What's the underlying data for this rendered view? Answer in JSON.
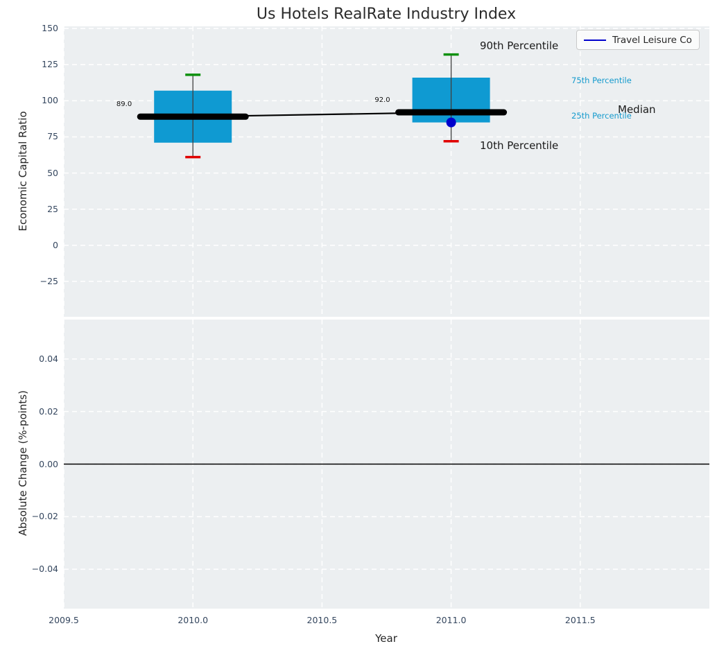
{
  "title": "Us Hotels RealRate Industry Index",
  "colors": {
    "plot_background": "#eceff1",
    "grid": "#ffffff",
    "box_fill": "#0f9ad2",
    "whisker": "#3f3f3f",
    "p90_cap": "#0d900d",
    "p10_cap": "#e00000",
    "median_line": "#000000",
    "company": "#0000cc",
    "tick_label": "#34465e",
    "annotation_cyan": "#149acd",
    "text": "#262626"
  },
  "legend": {
    "label": "Travel Leisure Co"
  },
  "annotations": {
    "p90": "90th Percentile",
    "p75": "75th Percentile",
    "median": "Median",
    "p25": "25th Percentile",
    "p10": "10th Percentile"
  },
  "chart_data": [
    {
      "type": "boxplot",
      "title": "Us Hotels RealRate Industry Index",
      "ylabel": "Economic Capital Ratio",
      "xlim": [
        2009.5,
        2012.0
      ],
      "ylim": [
        -49.5,
        151.5
      ],
      "grid": "white dashed, on",
      "legend_position": "upper right",
      "xtick_labels_shown": false,
      "yticks": [
        {
          "value": 150,
          "label": "150"
        },
        {
          "value": 125,
          "label": "125"
        },
        {
          "value": 100,
          "label": "100"
        },
        {
          "value": 75,
          "label": "75"
        },
        {
          "value": 50,
          "label": "50"
        },
        {
          "value": 25,
          "label": "25"
        },
        {
          "value": 0,
          "label": "0"
        },
        {
          "value": -25,
          "label": "−25"
        }
      ],
      "boxes": [
        {
          "x": 2010,
          "p10": 61,
          "p25": 71,
          "median": 89,
          "p75": 107,
          "p90": 118,
          "median_label": "89.0"
        },
        {
          "x": 2011,
          "p10": 72,
          "p25": 85,
          "median": 92,
          "p75": 116,
          "p90": 132,
          "median_label": "92.0"
        }
      ],
      "median_trend": {
        "x": [
          2010,
          2011
        ],
        "y": [
          89,
          92
        ]
      },
      "series": [
        {
          "name": "Travel Leisure Co",
          "type": "scatter",
          "x": [
            2011
          ],
          "y": [
            85
          ]
        }
      ]
    },
    {
      "type": "line",
      "ylabel": "Absolute Change (%-points)",
      "xlabel": "Year",
      "xlim": [
        2009.5,
        2012.0
      ],
      "ylim": [
        -0.055,
        0.055
      ],
      "grid": "white dashed, on",
      "zero_line": 0.0,
      "yticks": [
        {
          "value": 0.04,
          "label": "0.04"
        },
        {
          "value": 0.02,
          "label": "0.02"
        },
        {
          "value": 0.0,
          "label": "0.00"
        },
        {
          "value": -0.02,
          "label": "−0.02"
        },
        {
          "value": -0.04,
          "label": "−0.04"
        }
      ],
      "xticks": [
        {
          "value": 2009.5,
          "label": "2009.5"
        },
        {
          "value": 2010.0,
          "label": "2010.0"
        },
        {
          "value": 2010.5,
          "label": "2010.5"
        },
        {
          "value": 2011.0,
          "label": "2011.0"
        },
        {
          "value": 2011.5,
          "label": "2011.5"
        }
      ],
      "series": []
    }
  ]
}
